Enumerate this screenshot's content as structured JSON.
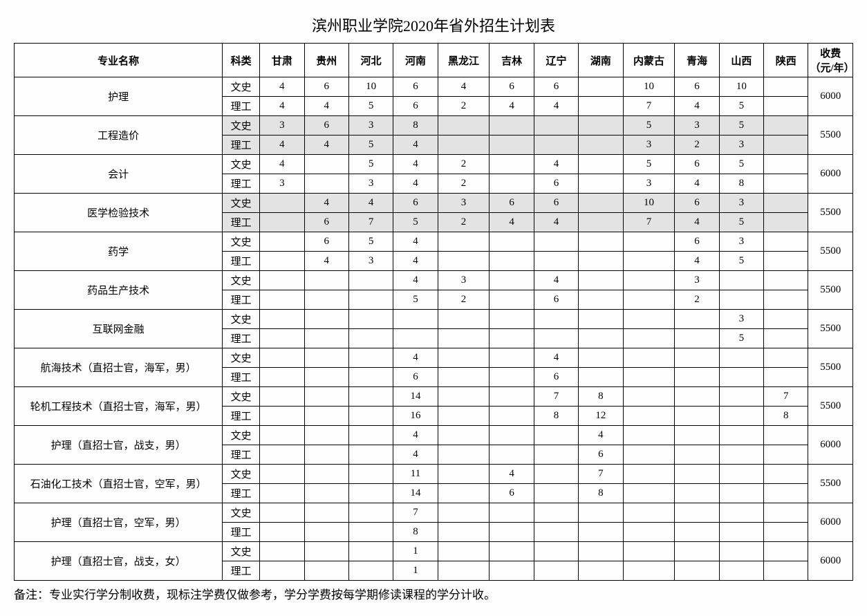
{
  "title": "滨州职业学院2020年省外招生计划表",
  "footnote": "备注：专业实行学分制收费，现标注学费仅做参考，学分学费按每学期修读课程的学分计收。",
  "headers": {
    "major": "专业名称",
    "type": "科类",
    "provinces": [
      "甘肃",
      "贵州",
      "河北",
      "河南",
      "黑龙江",
      "吉林",
      "辽宁",
      "湖南",
      "内蒙古",
      "青海",
      "山西",
      "陕西"
    ],
    "fee": "收费（元/年）"
  },
  "types": {
    "ws": "文史",
    "lg": "理工"
  },
  "majors": [
    {
      "name": "护理",
      "fee": "6000",
      "ws": [
        "4",
        "6",
        "10",
        "6",
        "4",
        "6",
        "6",
        "",
        "10",
        "6",
        "10",
        ""
      ],
      "lg": [
        "4",
        "4",
        "5",
        "6",
        "2",
        "4",
        "4",
        "",
        "7",
        "4",
        "5",
        ""
      ]
    },
    {
      "name": "工程造价",
      "fee": "5500",
      "shade": true,
      "ws": [
        "3",
        "6",
        "3",
        "8",
        "",
        "",
        "",
        "",
        "5",
        "3",
        "5",
        ""
      ],
      "lg": [
        "4",
        "4",
        "5",
        "4",
        "",
        "",
        "",
        "",
        "3",
        "2",
        "3",
        ""
      ]
    },
    {
      "name": "会计",
      "fee": "6000",
      "ws": [
        "4",
        "",
        "5",
        "4",
        "2",
        "",
        "4",
        "",
        "5",
        "6",
        "5",
        ""
      ],
      "lg": [
        "3",
        "",
        "3",
        "4",
        "2",
        "",
        "6",
        "",
        "3",
        "4",
        "8",
        ""
      ]
    },
    {
      "name": "医学检验技术",
      "fee": "5500",
      "shade": true,
      "ws": [
        "",
        "4",
        "4",
        "6",
        "3",
        "6",
        "6",
        "",
        "10",
        "6",
        "3",
        ""
      ],
      "lg": [
        "",
        "6",
        "7",
        "5",
        "2",
        "4",
        "4",
        "",
        "7",
        "4",
        "5",
        ""
      ]
    },
    {
      "name": "药学",
      "fee": "5500",
      "ws": [
        "",
        "6",
        "5",
        "4",
        "",
        "",
        "",
        "",
        "",
        "6",
        "3",
        ""
      ],
      "lg": [
        "",
        "4",
        "3",
        "4",
        "",
        "",
        "",
        "",
        "",
        "4",
        "5",
        ""
      ]
    },
    {
      "name": "药品生产技术",
      "fee": "5500",
      "ws": [
        "",
        "",
        "",
        "4",
        "3",
        "",
        "4",
        "",
        "",
        "3",
        "",
        ""
      ],
      "lg": [
        "",
        "",
        "",
        "5",
        "2",
        "",
        "6",
        "",
        "",
        "2",
        "",
        ""
      ]
    },
    {
      "name": "互联网金融",
      "fee": "5500",
      "ws": [
        "",
        "",
        "",
        "",
        "",
        "",
        "",
        "",
        "",
        "",
        "3",
        ""
      ],
      "lg": [
        "",
        "",
        "",
        "",
        "",
        "",
        "",
        "",
        "",
        "",
        "5",
        ""
      ]
    },
    {
      "name": "航海技术（直招士官，海军，男）",
      "fee": "5500",
      "ws": [
        "",
        "",
        "",
        "4",
        "",
        "",
        "4",
        "",
        "",
        "",
        "",
        ""
      ],
      "lg": [
        "",
        "",
        "",
        "6",
        "",
        "",
        "6",
        "",
        "",
        "",
        "",
        ""
      ]
    },
    {
      "name": "轮机工程技术（直招士官，海军，男）",
      "fee": "5500",
      "ws": [
        "",
        "",
        "",
        "14",
        "",
        "",
        "7",
        "8",
        "",
        "",
        "",
        "7"
      ],
      "lg": [
        "",
        "",
        "",
        "16",
        "",
        "",
        "8",
        "12",
        "",
        "",
        "",
        "8"
      ]
    },
    {
      "name": "护理（直招士官，战支，男）",
      "fee": "6000",
      "ws": [
        "",
        "",
        "",
        "4",
        "",
        "",
        "",
        "4",
        "",
        "",
        "",
        ""
      ],
      "lg": [
        "",
        "",
        "",
        "4",
        "",
        "",
        "",
        "6",
        "",
        "",
        "",
        ""
      ]
    },
    {
      "name": "石油化工技术（直招士官，空军，男）",
      "fee": "5500",
      "ws": [
        "",
        "",
        "",
        "11",
        "",
        "4",
        "",
        "7",
        "",
        "",
        "",
        ""
      ],
      "lg": [
        "",
        "",
        "",
        "14",
        "",
        "6",
        "",
        "8",
        "",
        "",
        "",
        ""
      ]
    },
    {
      "name": "护理（直招士官，空军，男）",
      "fee": "6000",
      "ws": [
        "",
        "",
        "",
        "7",
        "",
        "",
        "",
        "",
        "",
        "",
        "",
        ""
      ],
      "lg": [
        "",
        "",
        "",
        "8",
        "",
        "",
        "",
        "",
        "",
        "",
        "",
        ""
      ]
    },
    {
      "name": "护理（直招士官，战支，女）",
      "fee": "6000",
      "ws": [
        "",
        "",
        "",
        "1",
        "",
        "",
        "",
        "",
        "",
        "",
        "",
        ""
      ],
      "lg": [
        "",
        "",
        "",
        "1",
        "",
        "",
        "",
        "",
        "",
        "",
        "",
        ""
      ]
    }
  ],
  "style": {
    "background": "#fefeff",
    "border_color": "#000000",
    "shade_color": "#e3e3e3",
    "title_fontsize": 22,
    "body_fontsize": 15,
    "font_family": "SimSun"
  }
}
